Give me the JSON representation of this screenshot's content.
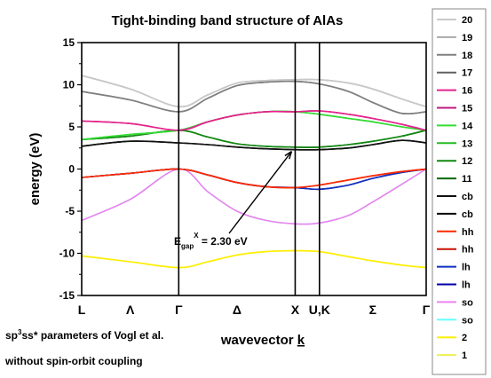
{
  "chart_data": {
    "type": "line",
    "title": "Tight-binding band structure of AlAs",
    "xlabel": "wavevector k",
    "ylabel": "energy (eV)",
    "ylim": [
      -15,
      15
    ],
    "yticks": [
      -15,
      -10,
      -5,
      0,
      5,
      10,
      15
    ],
    "grid": false,
    "legend_placement": "right",
    "k_points": [
      {
        "label": "L",
        "k": 0.0
      },
      {
        "label": "Λ",
        "k": 0.5
      },
      {
        "label": "Γ",
        "k": 1.0
      },
      {
        "label": "Δ",
        "k": 1.6
      },
      {
        "label": "X",
        "k": 2.2
      },
      {
        "label": "U,K",
        "k": 2.45
      },
      {
        "label": "Σ",
        "k": 3.0
      },
      {
        "label": "Γ",
        "k": 3.55
      }
    ],
    "vlines_k": [
      1.0,
      2.2,
      2.45
    ],
    "x": [
      0,
      0.5,
      1.0,
      1.3,
      1.6,
      1.9,
      2.2,
      2.45,
      2.75,
      3.0,
      3.3,
      3.55
    ],
    "series": [
      {
        "name": "20",
        "color": "#c8c8c8",
        "y": [
          11.1,
          9.5,
          7.4,
          8.8,
          10.2,
          10.5,
          10.6,
          10.6,
          10.2,
          9.5,
          8.3,
          7.4
        ]
      },
      {
        "name": "19",
        "color": "#aaaaaa",
        "y": [
          11.1,
          9.5,
          7.4,
          8.8,
          10.2,
          10.5,
          10.6,
          10.6,
          10.2,
          9.5,
          8.3,
          7.4
        ]
      },
      {
        "name": "18",
        "color": "#808080",
        "y": [
          9.2,
          8.2,
          6.8,
          8.4,
          9.9,
          10.3,
          10.4,
          10.1,
          9.2,
          7.9,
          6.6,
          6.8
        ]
      },
      {
        "name": "17",
        "color": "#606060",
        "y": [
          9.2,
          8.2,
          6.8,
          8.4,
          9.9,
          10.3,
          10.4,
          10.1,
          9.2,
          7.9,
          6.6,
          6.8
        ]
      },
      {
        "name": "16",
        "color": "#e6238c",
        "y": [
          5.7,
          5.4,
          4.6,
          5.6,
          6.4,
          6.8,
          6.8,
          6.9,
          6.5,
          6.0,
          5.3,
          4.6
        ]
      },
      {
        "name": "15",
        "color": "#c01880",
        "y": [
          5.7,
          5.4,
          4.6,
          5.6,
          6.4,
          6.8,
          6.8,
          6.9,
          6.5,
          6.0,
          5.3,
          4.6
        ]
      },
      {
        "name": "14",
        "color": "#33dd33",
        "y": [
          3.5,
          4.1,
          4.6,
          5.6,
          6.4,
          6.8,
          6.8,
          6.5,
          6.0,
          5.6,
          5.0,
          4.6
        ]
      },
      {
        "name": "13",
        "color": "#22bb22",
        "y": [
          3.5,
          4.1,
          4.6,
          5.6,
          6.4,
          6.8,
          6.8,
          6.5,
          6.0,
          5.6,
          5.0,
          4.6
        ]
      },
      {
        "name": "12",
        "color": "#118811",
        "y": [
          3.5,
          3.9,
          4.6,
          3.8,
          3.0,
          2.7,
          2.6,
          2.6,
          2.9,
          3.3,
          3.9,
          4.6
        ]
      },
      {
        "name": "11",
        "color": "#006600",
        "y": [
          3.5,
          3.9,
          4.6,
          3.8,
          3.0,
          2.7,
          2.6,
          2.6,
          2.9,
          3.3,
          3.9,
          4.6
        ]
      },
      {
        "name": "cb",
        "color": "#111111",
        "y": [
          2.7,
          3.3,
          3.1,
          2.9,
          2.6,
          2.4,
          2.3,
          2.3,
          2.5,
          2.9,
          3.4,
          3.1
        ]
      },
      {
        "name": "cb",
        "color": "#000000",
        "y": [
          2.7,
          3.3,
          3.1,
          2.9,
          2.6,
          2.4,
          2.3,
          2.3,
          2.5,
          2.9,
          3.4,
          3.1
        ]
      },
      {
        "name": "hh",
        "color": "#ff2a00",
        "y": [
          -1.0,
          -0.5,
          0.0,
          -0.7,
          -1.6,
          -2.1,
          -2.2,
          -1.9,
          -1.3,
          -0.8,
          -0.3,
          0.0
        ]
      },
      {
        "name": "hh",
        "color": "#cc1100",
        "y": [
          -1.0,
          -0.5,
          0.0,
          -0.7,
          -1.6,
          -2.1,
          -2.2,
          -1.9,
          -1.3,
          -0.8,
          -0.3,
          0.0
        ]
      },
      {
        "name": "lh",
        "color": "#1030c0",
        "y": [
          -1.0,
          -0.5,
          0.0,
          -0.7,
          -1.6,
          -2.1,
          -2.2,
          -2.4,
          -1.9,
          -1.1,
          -0.4,
          0.0
        ]
      },
      {
        "name": "lh",
        "color": "#0000aa",
        "y": [
          -1.0,
          -0.5,
          0.0,
          -0.7,
          -1.6,
          -2.1,
          -2.2,
          -2.4,
          -1.9,
          -1.1,
          -0.4,
          0.0
        ]
      },
      {
        "name": "so",
        "color": "#ee82ee",
        "y": [
          -6.1,
          -3.6,
          0.0,
          -2.7,
          -5.0,
          -6.1,
          -6.5,
          -6.4,
          -5.5,
          -3.9,
          -1.8,
          0.0
        ]
      },
      {
        "name": "so",
        "color": "#66ffff",
        "y": [
          -6.1,
          -3.6,
          0.0,
          -2.7,
          -5.0,
          -6.1,
          -6.5,
          -6.4,
          -5.5,
          -3.9,
          -1.8,
          0.0
        ]
      },
      {
        "name": "2",
        "color": "#ffee00",
        "y": [
          -10.3,
          -11.0,
          -11.7,
          -11.0,
          -10.2,
          -9.8,
          -9.7,
          -9.8,
          -10.4,
          -10.9,
          -11.4,
          -11.7
        ]
      },
      {
        "name": "1",
        "color": "#eeee55",
        "y": [
          -10.3,
          -11.0,
          -11.7,
          -11.0,
          -10.2,
          -9.8,
          -9.7,
          -9.8,
          -10.4,
          -10.9,
          -11.4,
          -11.7
        ]
      }
    ],
    "annotation": {
      "label": "E",
      "sub": "gap",
      "sup": "X",
      "value": "= 2.30 eV",
      "points_to_k": 2.2,
      "points_to_energy": 2.3
    }
  },
  "notes": {
    "line1_pre": "sp",
    "line1_sup1": "3",
    "line1_mid": "s",
    "line1_sup2": "",
    "line1_post": "s* parameters of Vogl et al.",
    "line2": "without spin-orbit coupling"
  }
}
